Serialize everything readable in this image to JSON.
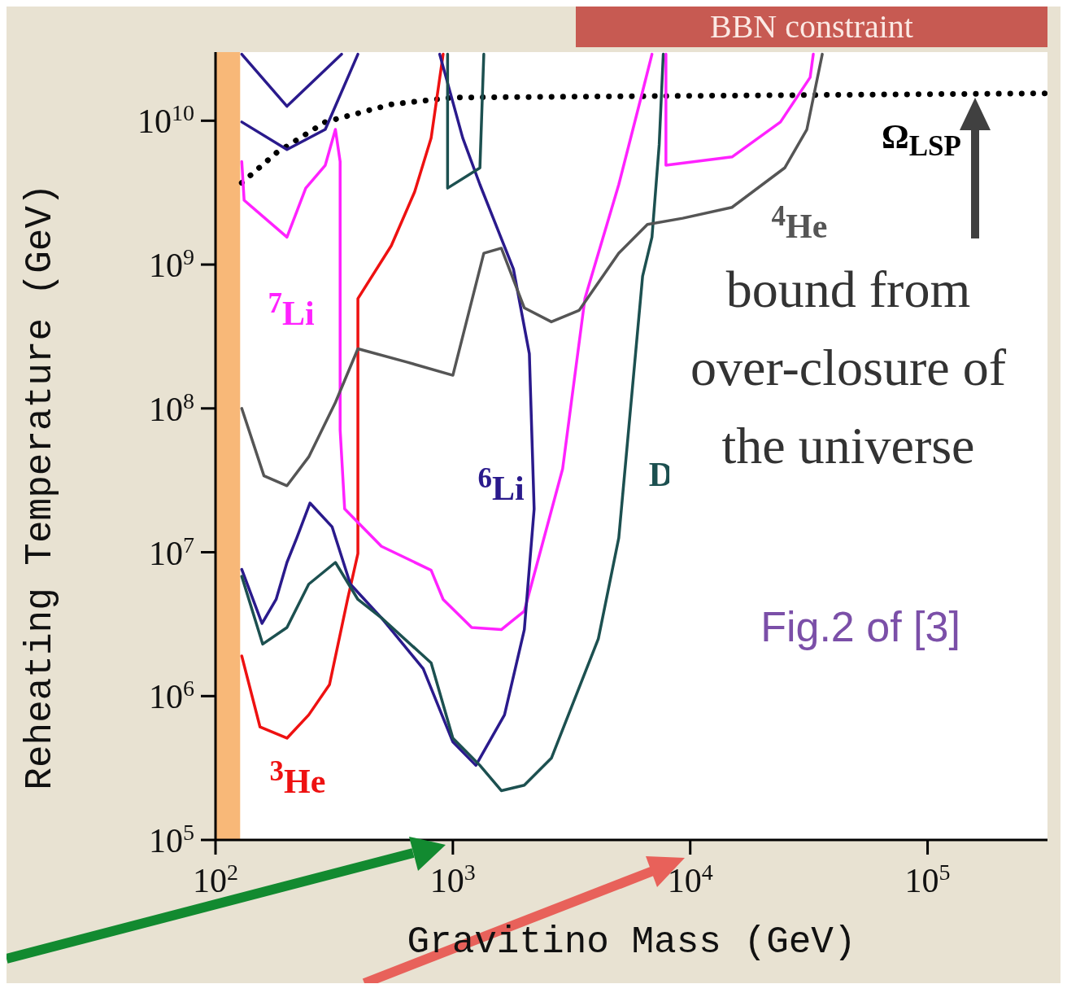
{
  "chart_data": {
    "type": "line",
    "title": "BBN constraint",
    "xlabel": "Gravitino Mass (GeV)",
    "ylabel": "Reheating Temperature (GeV)",
    "log": "xy",
    "marker": "none",
    "xlim": [
      100,
      320000
    ],
    "ylim": [
      100000,
      30000000000
    ],
    "xticks": [
      {
        "value": 100,
        "label": "10$^{2}$"
      },
      {
        "value": 1000,
        "label": "10$^{3}$"
      },
      {
        "value": 10000,
        "label": "10$^{4}$"
      },
      {
        "value": 100000,
        "label": "10$^{5}$"
      }
    ],
    "yticks": [
      {
        "value": 100000,
        "label": "10$^{5}$"
      },
      {
        "value": 1000000,
        "label": "10$^{6}$"
      },
      {
        "value": 10000000,
        "label": "10$^{7}$"
      },
      {
        "value": 100000000,
        "label": "10$^{8}$"
      },
      {
        "value": 1000000000,
        "label": "10$^{9}$"
      },
      {
        "value": 10000000000,
        "label": "10$^{10}$"
      }
    ],
    "bands": [
      {
        "axis": "x",
        "from": 100,
        "to": 127,
        "color": "#f8b878"
      }
    ],
    "series": [
      {
        "name": "Ω$_{LSP}$",
        "color": "#000000",
        "line_style": "dotted",
        "x": [
          129,
          181,
          290,
          550,
          1000,
          320000
        ],
        "values": [
          3700000000,
          6000000000,
          9800000000,
          13000000000,
          14500000000,
          15500000000
        ]
      },
      {
        "name": "$^{3}$He",
        "color": "#ee1111",
        "line_style": "solid",
        "x": [
          129,
          154,
          200,
          247,
          302,
          360,
          398,
          398,
          550,
          690,
          810,
          910
        ],
        "values": [
          1900000,
          610000,
          510000,
          740000,
          1200000,
          4700000,
          9800000,
          580000000,
          1350000000,
          3200000000,
          7600000000,
          29000000000
        ]
      },
      {
        "name": "$^{7}$Li",
        "color": "#ff22ff",
        "line_style": "solid",
        "x": [
          129,
          132,
          200,
          240,
          290,
          320,
          335,
          335,
          350,
          500,
          810,
          910,
          1200,
          1600,
          2000,
          2900,
          3600,
          5000,
          6300,
          6900
        ],
        "values": [
          5200000000,
          2800000000,
          1550000000,
          3400000000,
          4900000000,
          8700000000,
          5200000000,
          71000000,
          20000000,
          11000000,
          7500000,
          4700000,
          3000000,
          2900000,
          3900000,
          38000000,
          580000000,
          3600000000,
          16000000000,
          29000000000
        ]
      },
      {
        "name": "$^{6}$Li",
        "color": "#2a1a8c",
        "line_style": "solid",
        "x": [
          129,
          157,
          180,
          200,
          220,
          250,
          310,
          370,
          500,
          750,
          1000,
          1250,
          1650,
          2000,
          2200,
          2100,
          1800,
          1300,
          1100,
          880
        ],
        "values": [
          7600000,
          3200000,
          4700000,
          8500000,
          12600000,
          22000000,
          15000000,
          6000000,
          3500000,
          1550000,
          480000,
          330000,
          740000,
          2900000,
          20000000,
          240000000,
          930000000,
          3600000000,
          7600000000,
          29000000000
        ]
      },
      {
        "name": "D",
        "color": "#1c5050",
        "line_style": "solid",
        "x": [
          129,
          158,
          200,
          247,
          320,
          398,
          500,
          810,
          1000,
          1300,
          1600,
          2000,
          2600,
          4100,
          5000,
          6300,
          6900,
          7400,
          7700
        ],
        "values": [
          6800000,
          2300000,
          3000000,
          6000000,
          8500000,
          4700000,
          3500000,
          1700000,
          510000,
          330000,
          220000,
          240000,
          370000,
          2500000,
          12600000,
          830000000,
          1550000000,
          6800000000,
          29000000000
        ]
      },
      {
        "name": "$^{4}$He",
        "color": "#555555",
        "line_style": "solid",
        "x": [
          129,
          160,
          200,
          247,
          320,
          398,
          640,
          1000,
          1350,
          1600,
          2000,
          2600,
          3400,
          5000,
          6600,
          9300,
          15000,
          25000,
          31000,
          36000
        ],
        "values": [
          100000000,
          34000000,
          29000000,
          46000000,
          110000000,
          260000000,
          210000000,
          170000000,
          1200000000,
          1300000000,
          500000000,
          400000000,
          480000000,
          1200000000,
          1900000000,
          2100000000,
          2500000000,
          4700000000,
          8700000000,
          29000000000
        ]
      },
      {
        "color": "#ff22ff",
        "line_style": "solid",
        "x": [
          7900,
          7900,
          15000,
          24000,
          32000,
          33000
        ],
        "values": [
          29000000000,
          4900000000,
          5600000000,
          9800000000,
          20000000000,
          29000000000
        ]
      },
      {
        "color": "#2a1a8c",
        "line_style": "solid",
        "x": [
          129,
          200,
          340
        ],
        "values": [
          29000000000,
          12600000000,
          29000000000
        ]
      },
      {
        "color": "#2a1a8c",
        "line_style": "solid",
        "x": [
          129,
          200,
          290,
          398
        ],
        "values": [
          9800000000,
          6300000000,
          8700000000,
          29000000000
        ]
      },
      {
        "color": "#1c5050",
        "line_style": "solid",
        "x": [
          950,
          950,
          1300,
          1350
        ],
        "values": [
          29000000000,
          3400000000,
          4700000000,
          29000000000
        ]
      }
    ],
    "annotations": [
      "bound from over-closure of the universe",
      "Fig.2 of [3]"
    ]
  }
}
